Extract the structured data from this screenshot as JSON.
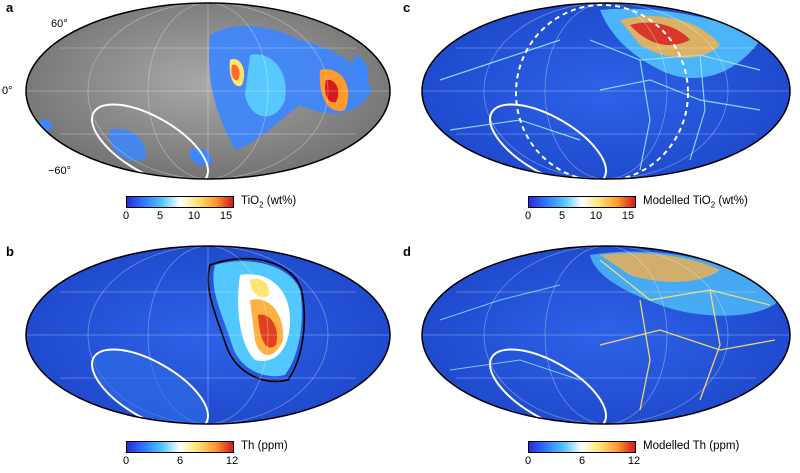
{
  "panels": [
    {
      "id": "a",
      "label": "a",
      "colorbar_title": "TiO",
      "colorbar_sub": "2",
      "colorbar_unit": " (wt%)",
      "ticks": [
        "0",
        "5",
        "10",
        "15"
      ]
    },
    {
      "id": "b",
      "label": "b",
      "colorbar_title": "Th (ppm)",
      "colorbar_sub": "",
      "colorbar_unit": "",
      "ticks": [
        "0",
        "6",
        "12"
      ]
    },
    {
      "id": "c",
      "label": "c",
      "colorbar_title": "Modelled TiO",
      "colorbar_sub": "2",
      "colorbar_unit": " (wt%)",
      "ticks": [
        "0",
        "5",
        "10",
        "15"
      ]
    },
    {
      "id": "d",
      "label": "d",
      "colorbar_title": "Modelled Th (ppm)",
      "colorbar_sub": "",
      "colorbar_unit": "",
      "ticks": [
        "0",
        "6",
        "12"
      ]
    }
  ],
  "lat_labels": {
    "north": "60°",
    "equator": "0°",
    "south": "−60°"
  },
  "colors": {
    "ocean_blue": "#1f4fd6",
    "gray_map": "#8c8c8c",
    "ellipse_outline": "#ffffff",
    "hot_red": "#d7191c",
    "hot_yellow": "#ffd32a"
  }
}
